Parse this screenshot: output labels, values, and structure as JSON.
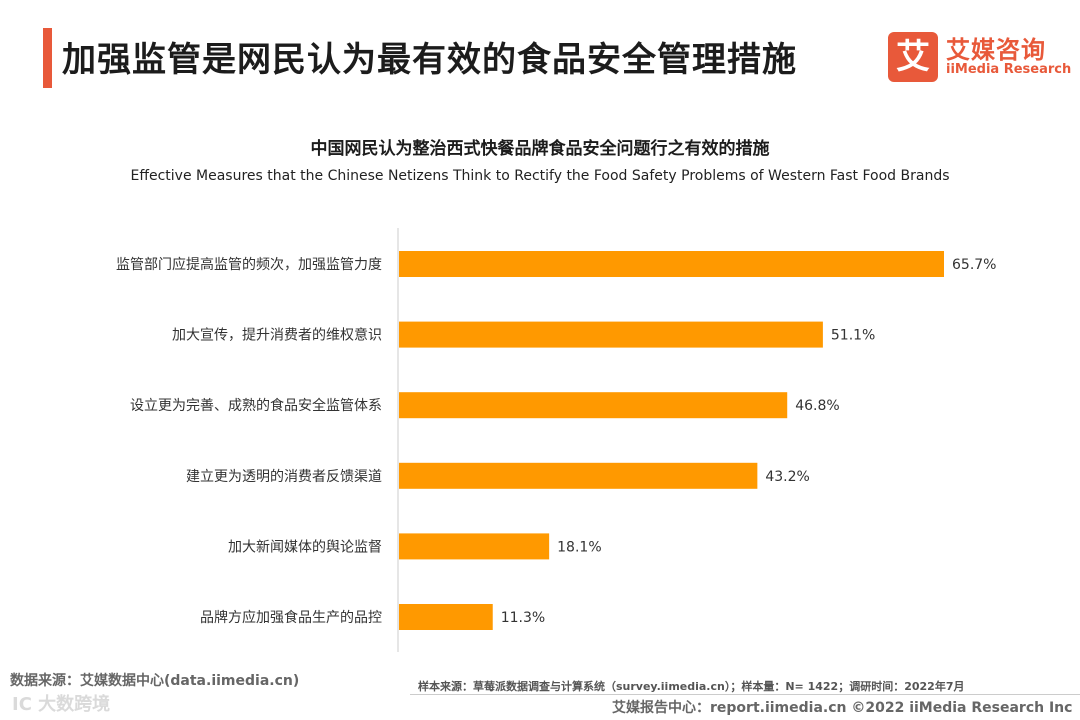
{
  "header": {
    "title": "加强监管是网民认为最有效的食品安全管理措施",
    "accent_color": "#e8593a"
  },
  "logo": {
    "mark": "艾",
    "cn": "艾媒咨询",
    "en": "iiMedia Research"
  },
  "chart_data": {
    "type": "bar",
    "orientation": "horizontal",
    "title": "中国网民认为整治西式快餐品牌食品安全问题行之有效的措施",
    "subtitle": "Effective Measures that the Chinese Netizens Think to Rectify the Food Safety Problems of Western Fast Food Brands",
    "categories": [
      "监管部门应提高监管的频次，加强监管力度",
      "加大宣传，提升消费者的维权意识",
      "设立更为完善、成熟的食品安全监管体系",
      "建立更为透明的消费者反馈渠道",
      "加大新闻媒体的舆论监督",
      "品牌方应加强食品生产的品控"
    ],
    "values": [
      65.7,
      51.1,
      46.8,
      43.2,
      18.1,
      11.3
    ],
    "labels": [
      "65.7%",
      "51.1%",
      "46.8%",
      "43.2%",
      "18.1%",
      "11.3%"
    ],
    "unit": "%",
    "xlim": [
      0,
      65.7
    ],
    "bar_color": "#ff9900",
    "grid": false
  },
  "footer": {
    "source": "数据来源：艾媒数据中心(data.iimedia.cn)",
    "sample": "样本来源：草莓派数据调查与计算系统（survey.iimedia.cn）；样本量：N= 1422；调研时间：2022年7月",
    "report": "艾媒报告中心：report.iimedia.cn    ©2022  iiMedia Research  Inc",
    "watermark": "IC 大数跨境"
  }
}
